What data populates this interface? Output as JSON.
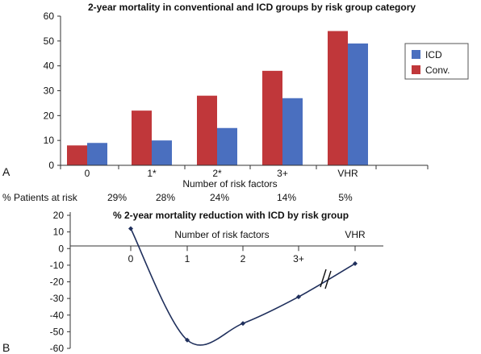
{
  "chart_data": [
    {
      "panel_label": "A",
      "type": "bar",
      "title": "2-year mortality in conventional and ICD groups by risk group category",
      "xlabel": "Number of risk factors",
      "ylabel": "",
      "ylim": [
        0,
        60
      ],
      "yticks": [
        "0",
        "10",
        "20",
        "30",
        "40",
        "50",
        "60"
      ],
      "categories": [
        "0",
        "1*",
        "2*",
        "3+",
        "VHR"
      ],
      "series": [
        {
          "name": "Conv.",
          "color": "#c0373a",
          "values": [
            8,
            22,
            28,
            38,
            54
          ]
        },
        {
          "name": "ICD",
          "color": "#4a6fbf",
          "values": [
            9,
            10,
            15,
            27,
            49
          ]
        }
      ],
      "legend_position": "right",
      "grid": false
    },
    {
      "panel_label": "B",
      "type": "line",
      "title": "% 2-year mortality reduction with ICD by risk group",
      "row_label": "% Patients at risk",
      "patients_at_risk": [
        "29%",
        "28%",
        "24%",
        "14%",
        "5%"
      ],
      "xlabel": "Number of risk factors",
      "x_ticks": [
        "0",
        "1",
        "2",
        "3+",
        "VHR"
      ],
      "ylim": [
        -60,
        20
      ],
      "yticks": [
        "20",
        "10",
        "0",
        "-10",
        "-20",
        "-30",
        "-40",
        "-50",
        "-60"
      ],
      "x": [
        0,
        1,
        2,
        3,
        4
      ],
      "y": [
        12,
        -55,
        -45,
        -29,
        -9
      ],
      "axis_break": true,
      "color": "#1f2f5c",
      "grid": false
    }
  ]
}
